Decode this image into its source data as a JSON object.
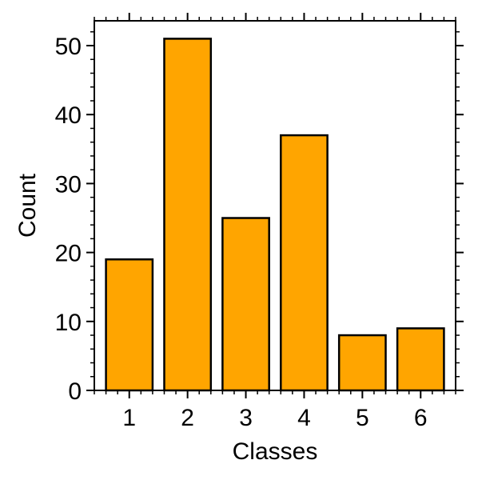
{
  "chart_data": {
    "type": "bar",
    "categories": [
      "1",
      "2",
      "3",
      "4",
      "5",
      "6"
    ],
    "values": [
      19,
      51,
      25,
      37,
      8,
      9
    ],
    "title": "",
    "xlabel": "Classes",
    "ylabel": "Count",
    "ylim": [
      0,
      53.6
    ],
    "yticks": [
      0,
      10,
      20,
      30,
      40,
      50
    ],
    "grid": false,
    "bar_color": "#ffa500",
    "bar_edge_color": "#000000"
  }
}
